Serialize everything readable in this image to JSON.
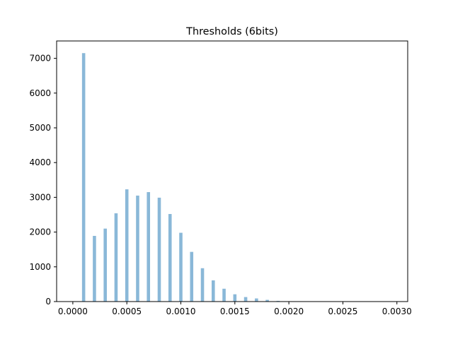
{
  "chart_data": {
    "type": "bar",
    "title": "Thresholds (6bits)",
    "xlabel": "",
    "ylabel": "",
    "xlim": [
      -0.00015,
      0.0031
    ],
    "ylim": [
      0,
      7500
    ],
    "x_ticks": [
      0.0,
      0.0005,
      0.001,
      0.0015,
      0.002,
      0.0025,
      0.003
    ],
    "x_tick_labels": [
      "0.0000",
      "0.0005",
      "0.0010",
      "0.0015",
      "0.0020",
      "0.0025",
      "0.0030"
    ],
    "y_ticks": [
      0,
      1000,
      2000,
      3000,
      4000,
      5000,
      6000,
      7000
    ],
    "y_tick_labels": [
      "0",
      "1000",
      "2000",
      "3000",
      "4000",
      "5000",
      "6000",
      "7000"
    ],
    "bar_width": 3e-05,
    "bar_color": "#8ab8d8",
    "grid": false,
    "x": [
      0.0001,
      0.0002,
      0.0003,
      0.0004,
      0.0005,
      0.0006,
      0.0007,
      0.0008,
      0.0009,
      0.001,
      0.0011,
      0.0012,
      0.0013,
      0.0014,
      0.0015,
      0.0016,
      0.0017,
      0.0018,
      0.0019,
      0.002
    ],
    "values": [
      7150,
      1890,
      2100,
      2540,
      3230,
      3050,
      3150,
      2990,
      2520,
      1980,
      1430,
      960,
      610,
      370,
      210,
      130,
      90,
      50,
      20,
      10
    ]
  }
}
